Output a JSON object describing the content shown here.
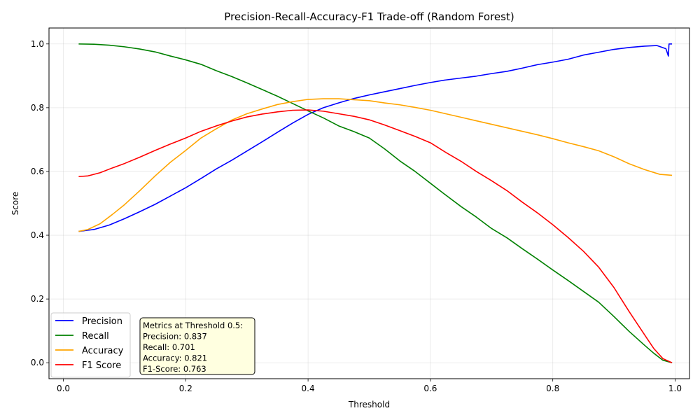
{
  "chart_data": {
    "type": "line",
    "title": "Precision-Recall-Accuracy-F1 Trade-off (Random Forest)",
    "xlabel": "Threshold",
    "ylabel": "Score",
    "xlim": [
      -0.0235,
      1.0235
    ],
    "ylim": [
      -0.05,
      1.05
    ],
    "xticks": [
      0.0,
      0.2,
      0.4,
      0.6,
      0.8,
      1.0
    ],
    "xtick_labels": [
      "0.0",
      "0.2",
      "0.4",
      "0.6",
      "0.8",
      "1.0"
    ],
    "yticks": [
      0.0,
      0.2,
      0.4,
      0.6,
      0.8,
      1.0
    ],
    "ytick_labels": [
      "0.0",
      "0.2",
      "0.4",
      "0.6",
      "0.8",
      "1.0"
    ],
    "grid": true,
    "legend_position": "lower-left",
    "series": [
      {
        "name": "Precision",
        "color": "#0000ff",
        "x": [
          0.025,
          0.05,
          0.075,
          0.1,
          0.125,
          0.15,
          0.175,
          0.2,
          0.225,
          0.25,
          0.275,
          0.3,
          0.325,
          0.35,
          0.375,
          0.4,
          0.425,
          0.45,
          0.475,
          0.5,
          0.525,
          0.55,
          0.575,
          0.6,
          0.625,
          0.65,
          0.675,
          0.7,
          0.725,
          0.75,
          0.775,
          0.8,
          0.825,
          0.85,
          0.875,
          0.9,
          0.925,
          0.95,
          0.97,
          0.985,
          0.989,
          0.99,
          0.995
        ],
        "y": [
          0.412,
          0.418,
          0.432,
          0.452,
          0.474,
          0.497,
          0.523,
          0.549,
          0.578,
          0.608,
          0.635,
          0.664,
          0.693,
          0.723,
          0.752,
          0.779,
          0.8,
          0.815,
          0.829,
          0.84,
          0.85,
          0.86,
          0.87,
          0.879,
          0.887,
          0.893,
          0.899,
          0.907,
          0.914,
          0.924,
          0.935,
          0.943,
          0.952,
          0.965,
          0.974,
          0.983,
          0.989,
          0.993,
          0.995,
          0.985,
          0.962,
          1.0,
          1.0
        ]
      },
      {
        "name": "Recall",
        "color": "#008000",
        "x": [
          0.025,
          0.05,
          0.075,
          0.1,
          0.125,
          0.15,
          0.175,
          0.2,
          0.225,
          0.25,
          0.275,
          0.3,
          0.325,
          0.35,
          0.375,
          0.4,
          0.425,
          0.45,
          0.475,
          0.5,
          0.525,
          0.55,
          0.575,
          0.6,
          0.625,
          0.65,
          0.675,
          0.7,
          0.725,
          0.75,
          0.775,
          0.8,
          0.825,
          0.85,
          0.875,
          0.9,
          0.925,
          0.95,
          0.965,
          0.98,
          0.995
        ],
        "y": [
          1.0,
          0.999,
          0.996,
          0.991,
          0.984,
          0.975,
          0.962,
          0.95,
          0.936,
          0.916,
          0.898,
          0.878,
          0.857,
          0.836,
          0.813,
          0.79,
          0.768,
          0.743,
          0.725,
          0.705,
          0.671,
          0.633,
          0.6,
          0.563,
          0.526,
          0.49,
          0.457,
          0.421,
          0.392,
          0.358,
          0.325,
          0.291,
          0.258,
          0.224,
          0.19,
          0.145,
          0.098,
          0.055,
          0.03,
          0.008,
          0.0
        ]
      },
      {
        "name": "Accuracy",
        "color": "#ffa500",
        "x": [
          0.025,
          0.04,
          0.06,
          0.08,
          0.1,
          0.125,
          0.15,
          0.175,
          0.2,
          0.225,
          0.25,
          0.275,
          0.3,
          0.325,
          0.35,
          0.375,
          0.4,
          0.425,
          0.45,
          0.475,
          0.5,
          0.525,
          0.55,
          0.575,
          0.6,
          0.625,
          0.65,
          0.675,
          0.7,
          0.725,
          0.75,
          0.775,
          0.8,
          0.825,
          0.85,
          0.875,
          0.9,
          0.925,
          0.95,
          0.975,
          0.995
        ],
        "y": [
          0.412,
          0.418,
          0.436,
          0.465,
          0.496,
          0.54,
          0.586,
          0.629,
          0.666,
          0.705,
          0.734,
          0.761,
          0.781,
          0.796,
          0.81,
          0.819,
          0.826,
          0.828,
          0.828,
          0.825,
          0.822,
          0.815,
          0.809,
          0.801,
          0.792,
          0.781,
          0.77,
          0.759,
          0.748,
          0.737,
          0.726,
          0.715,
          0.703,
          0.69,
          0.678,
          0.665,
          0.646,
          0.624,
          0.606,
          0.591,
          0.588
        ]
      },
      {
        "name": "F1 Score",
        "color": "#ff0000",
        "x": [
          0.025,
          0.04,
          0.06,
          0.08,
          0.1,
          0.125,
          0.15,
          0.175,
          0.2,
          0.225,
          0.25,
          0.275,
          0.3,
          0.325,
          0.35,
          0.375,
          0.4,
          0.425,
          0.45,
          0.475,
          0.5,
          0.525,
          0.55,
          0.575,
          0.6,
          0.625,
          0.65,
          0.675,
          0.7,
          0.725,
          0.75,
          0.775,
          0.8,
          0.825,
          0.85,
          0.875,
          0.9,
          0.925,
          0.95,
          0.965,
          0.98,
          0.995
        ],
        "y": [
          0.584,
          0.586,
          0.596,
          0.611,
          0.625,
          0.645,
          0.666,
          0.686,
          0.705,
          0.726,
          0.743,
          0.758,
          0.771,
          0.78,
          0.787,
          0.792,
          0.793,
          0.789,
          0.781,
          0.773,
          0.762,
          0.746,
          0.728,
          0.71,
          0.69,
          0.66,
          0.632,
          0.6,
          0.571,
          0.54,
          0.504,
          0.47,
          0.433,
          0.393,
          0.35,
          0.3,
          0.236,
          0.16,
          0.088,
          0.045,
          0.013,
          0.0
        ]
      }
    ],
    "metrics_box": {
      "heading": "Metrics at Threshold 0.5:",
      "lines": [
        "Precision: 0.837",
        "Recall: 0.701",
        "Accuracy: 0.821",
        "F1-Score: 0.763"
      ]
    }
  }
}
